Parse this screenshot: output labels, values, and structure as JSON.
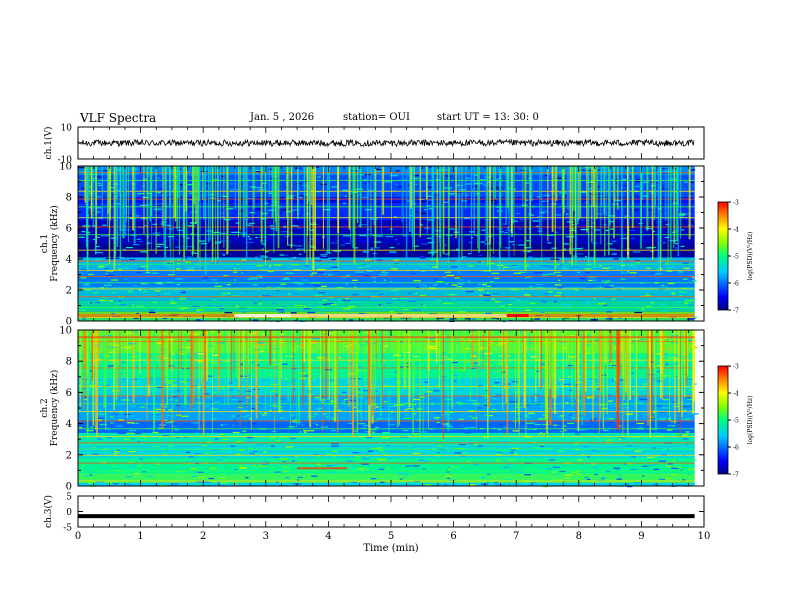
{
  "header": {
    "title": "VLF Spectra",
    "date": "Jan. 5 , 2026",
    "station": "station= OUI",
    "start": "start UT = 13: 30: 0"
  },
  "chart_data": [
    {
      "type": "line",
      "panel": "ch1-waveform",
      "ylabel": "ch.1(V)",
      "yticks": [
        "10",
        "-10"
      ],
      "ylim": [
        -10,
        10
      ],
      "xlim": [
        0,
        10
      ],
      "trace_level": 0,
      "trace_end_min": 9.85
    },
    {
      "type": "heatmap",
      "panel": "ch1-spectrogram",
      "ylabel": "Frequency (kHz)",
      "channel_label": "ch.1",
      "yticks": [
        "0",
        "2",
        "4",
        "6",
        "8",
        "10"
      ],
      "ylim": [
        0,
        10
      ],
      "xlim": [
        0,
        10
      ],
      "data_end_min": 9.85,
      "colorbar": {
        "label": "log(PSD)(V²/Hz)",
        "ticks": [
          "-3",
          "-4",
          "-5",
          "-6",
          "-7"
        ],
        "range": [
          -7,
          -3
        ]
      }
    },
    {
      "type": "heatmap",
      "panel": "ch2-spectrogram",
      "ylabel": "Frequency (kHz)",
      "channel_label": "ch.2",
      "yticks": [
        "0",
        "2",
        "4",
        "6",
        "8",
        "10"
      ],
      "ylim": [
        0,
        10
      ],
      "xlim": [
        0,
        10
      ],
      "data_end_min": 9.85,
      "colorbar": {
        "label": "log(PSD)(V²/Hz)",
        "ticks": [
          "-3",
          "-4",
          "-5",
          "-6",
          "-7"
        ],
        "range": [
          -7,
          -3
        ]
      }
    },
    {
      "type": "line",
      "panel": "ch3-waveform",
      "ylabel": "ch.3(V)",
      "yticks": [
        "5",
        "0",
        "-5"
      ],
      "ylim": [
        -5,
        5
      ],
      "xlim": [
        0,
        10
      ],
      "trace_level": -1.5,
      "trace_end_min": 9.85
    }
  ],
  "xaxis": {
    "label": "Time (min)",
    "ticks": [
      "0",
      "1",
      "2",
      "3",
      "4",
      "5",
      "6",
      "7",
      "8",
      "9",
      "10"
    ]
  }
}
